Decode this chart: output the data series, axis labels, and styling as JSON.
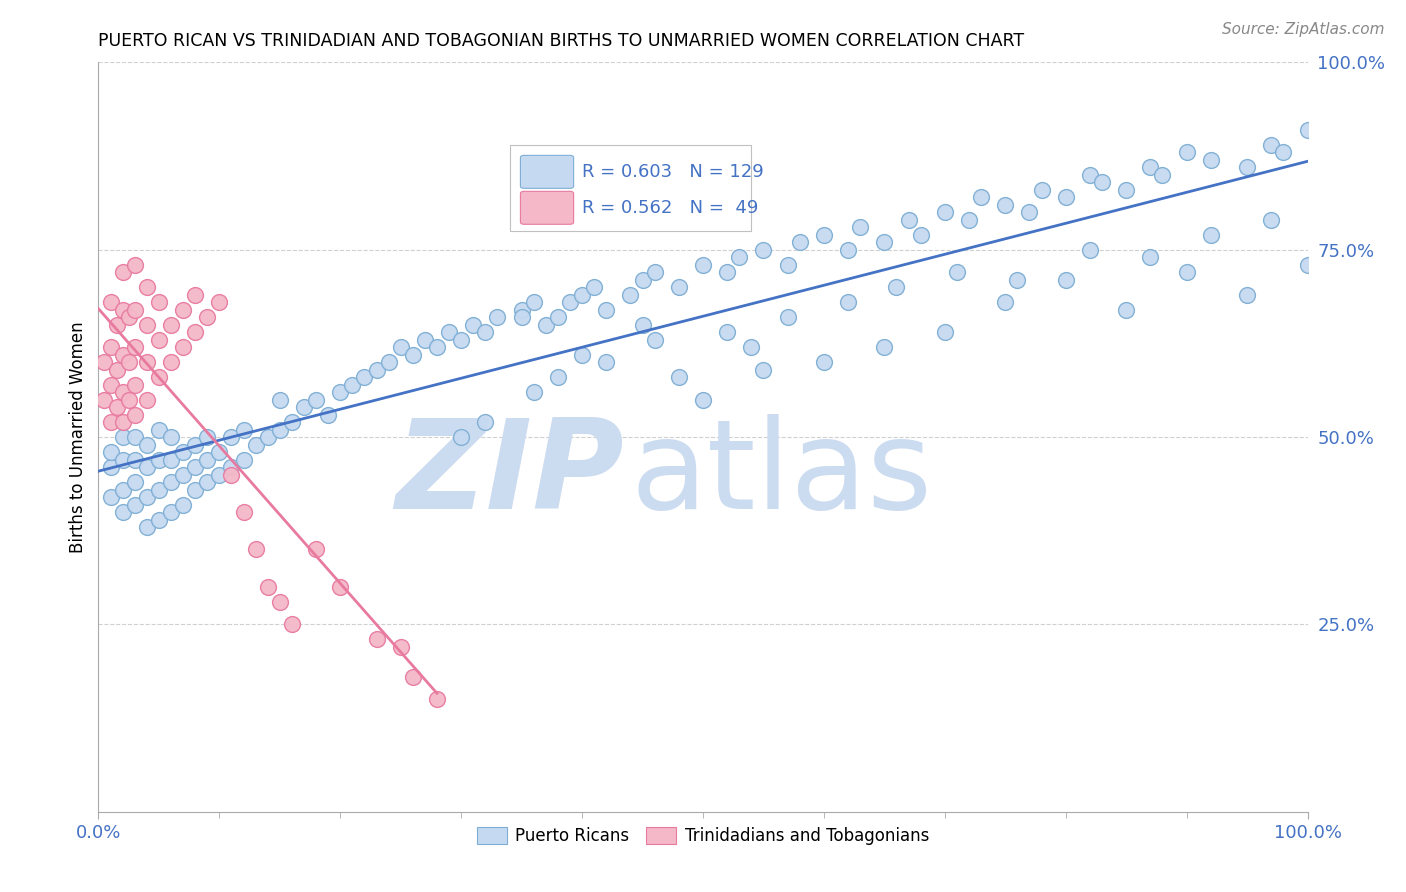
{
  "title": "PUERTO RICAN VS TRINIDADIAN AND TOBAGONIAN BIRTHS TO UNMARRIED WOMEN CORRELATION CHART",
  "source": "Source: ZipAtlas.com",
  "ylabel": "Births to Unmarried Women",
  "pr_color": "#c5d9f1",
  "tt_color": "#f4b8c8",
  "pr_edge_color": "#7eaed4",
  "tt_edge_color": "#e87aa0",
  "pr_line_color": "#4472c4",
  "tt_line_color": "#e8668a",
  "legend_text_color": "#4472c4",
  "tick_color": "#4472c4",
  "grid_color": "#d0d0d0",
  "background_color": "#ffffff",
  "watermark_color": "#ccdcf0",
  "title_fontsize": 12.5,
  "source_fontsize": 11,
  "tick_fontsize": 13,
  "ylabel_fontsize": 12,
  "legend_fontsize": 13,
  "watermark_fontsize": 90,
  "scatter_size": 130,
  "scatter_lw": 1.0,
  "pr_x": [
    0.01,
    0.01,
    0.01,
    0.02,
    0.02,
    0.02,
    0.02,
    0.03,
    0.03,
    0.03,
    0.03,
    0.04,
    0.04,
    0.04,
    0.04,
    0.05,
    0.05,
    0.05,
    0.05,
    0.06,
    0.06,
    0.06,
    0.06,
    0.07,
    0.07,
    0.07,
    0.08,
    0.08,
    0.08,
    0.09,
    0.09,
    0.09,
    0.1,
    0.1,
    0.11,
    0.11,
    0.12,
    0.12,
    0.13,
    0.14,
    0.15,
    0.15,
    0.16,
    0.17,
    0.18,
    0.19,
    0.2,
    0.21,
    0.22,
    0.23,
    0.24,
    0.25,
    0.26,
    0.27,
    0.28,
    0.29,
    0.3,
    0.31,
    0.32,
    0.33,
    0.35,
    0.36,
    0.37,
    0.38,
    0.39,
    0.4,
    0.41,
    0.42,
    0.44,
    0.45,
    0.46,
    0.48,
    0.5,
    0.52,
    0.53,
    0.55,
    0.57,
    0.58,
    0.6,
    0.62,
    0.63,
    0.65,
    0.67,
    0.68,
    0.7,
    0.72,
    0.73,
    0.75,
    0.77,
    0.78,
    0.8,
    0.82,
    0.83,
    0.85,
    0.87,
    0.88,
    0.9,
    0.92,
    0.95,
    0.97,
    0.98,
    1.0,
    0.35,
    0.4,
    0.45,
    0.5,
    0.55,
    0.6,
    0.65,
    0.7,
    0.75,
    0.8,
    0.85,
    0.9,
    0.95,
    1.0,
    0.3,
    0.32,
    0.36,
    0.38,
    0.42,
    0.46,
    0.48,
    0.52,
    0.54,
    0.57,
    0.62,
    0.66,
    0.71,
    0.76,
    0.82,
    0.87,
    0.92,
    0.97
  ],
  "pr_y": [
    0.42,
    0.46,
    0.48,
    0.4,
    0.43,
    0.47,
    0.5,
    0.41,
    0.44,
    0.47,
    0.5,
    0.38,
    0.42,
    0.46,
    0.49,
    0.39,
    0.43,
    0.47,
    0.51,
    0.4,
    0.44,
    0.47,
    0.5,
    0.41,
    0.45,
    0.48,
    0.43,
    0.46,
    0.49,
    0.44,
    0.47,
    0.5,
    0.45,
    0.48,
    0.46,
    0.5,
    0.47,
    0.51,
    0.49,
    0.5,
    0.51,
    0.55,
    0.52,
    0.54,
    0.55,
    0.53,
    0.56,
    0.57,
    0.58,
    0.59,
    0.6,
    0.62,
    0.61,
    0.63,
    0.62,
    0.64,
    0.63,
    0.65,
    0.64,
    0.66,
    0.67,
    0.68,
    0.65,
    0.66,
    0.68,
    0.69,
    0.7,
    0.67,
    0.69,
    0.71,
    0.72,
    0.7,
    0.73,
    0.72,
    0.74,
    0.75,
    0.73,
    0.76,
    0.77,
    0.75,
    0.78,
    0.76,
    0.79,
    0.77,
    0.8,
    0.79,
    0.82,
    0.81,
    0.8,
    0.83,
    0.82,
    0.85,
    0.84,
    0.83,
    0.86,
    0.85,
    0.88,
    0.87,
    0.86,
    0.89,
    0.88,
    0.91,
    0.66,
    0.61,
    0.65,
    0.55,
    0.59,
    0.6,
    0.62,
    0.64,
    0.68,
    0.71,
    0.67,
    0.72,
    0.69,
    0.73,
    0.5,
    0.52,
    0.56,
    0.58,
    0.6,
    0.63,
    0.58,
    0.64,
    0.62,
    0.66,
    0.68,
    0.7,
    0.72,
    0.71,
    0.75,
    0.74,
    0.77,
    0.79
  ],
  "tt_x": [
    0.005,
    0.005,
    0.01,
    0.01,
    0.01,
    0.01,
    0.015,
    0.015,
    0.015,
    0.02,
    0.02,
    0.02,
    0.02,
    0.02,
    0.025,
    0.025,
    0.025,
    0.03,
    0.03,
    0.03,
    0.03,
    0.03,
    0.04,
    0.04,
    0.04,
    0.04,
    0.05,
    0.05,
    0.05,
    0.06,
    0.06,
    0.07,
    0.07,
    0.08,
    0.08,
    0.09,
    0.1,
    0.11,
    0.12,
    0.13,
    0.14,
    0.15,
    0.16,
    0.18,
    0.2,
    0.23,
    0.25,
    0.26,
    0.28
  ],
  "tt_y": [
    0.55,
    0.6,
    0.52,
    0.57,
    0.62,
    0.68,
    0.54,
    0.59,
    0.65,
    0.52,
    0.56,
    0.61,
    0.67,
    0.72,
    0.55,
    0.6,
    0.66,
    0.53,
    0.57,
    0.62,
    0.67,
    0.73,
    0.55,
    0.6,
    0.65,
    0.7,
    0.58,
    0.63,
    0.68,
    0.6,
    0.65,
    0.62,
    0.67,
    0.64,
    0.69,
    0.66,
    0.68,
    0.45,
    0.4,
    0.35,
    0.3,
    0.28,
    0.25,
    0.35,
    0.3,
    0.23,
    0.22,
    0.18,
    0.15
  ],
  "tt_line_x0": 0.0,
  "tt_line_x1": 0.28,
  "pr_line_x0": 0.0,
  "pr_line_x1": 1.0,
  "xlim": [
    0.0,
    1.0
  ],
  "ylim": [
    0.0,
    1.0
  ],
  "yticks": [
    0.25,
    0.5,
    0.75,
    1.0
  ],
  "yticklabels": [
    "25.0%",
    "50.0%",
    "75.0%",
    "100.0%"
  ],
  "xticks": [
    0.0,
    1.0
  ],
  "xticklabels": [
    "0.0%",
    "100.0%"
  ]
}
